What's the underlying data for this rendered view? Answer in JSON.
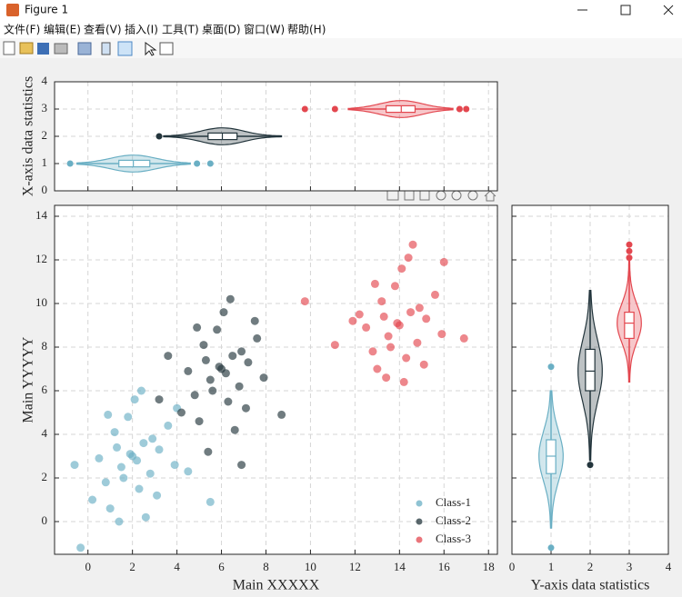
{
  "window": {
    "title": "Figure 1",
    "menu": [
      "文件(F)",
      "编辑(E)",
      "查看(V)",
      "插入(I)",
      "工具(T)",
      "桌面(D)",
      "窗口(W)",
      "帮助(H)"
    ]
  },
  "chart_data": [
    {
      "type": "scatter",
      "xlabel": "Main XXXXX",
      "ylabel": "Main YYYYY",
      "xlim": [
        -1.5,
        18.4
      ],
      "xticks": [
        0,
        2,
        4,
        6,
        8,
        10,
        12,
        14,
        16,
        18
      ],
      "ylim": [
        -1.5,
        14.5
      ],
      "yticks": [
        0,
        2,
        4,
        6,
        8,
        10,
        12,
        14
      ],
      "grid": true,
      "tick_labels": [
        "x",
        "y"
      ],
      "legend": "lower right",
      "series": [
        {
          "name": "Class-1",
          "color": "#6aafc4",
          "x": [
            2.0,
            1.5,
            2.5,
            1.2,
            2.8,
            0.8,
            3.2,
            1.8,
            2.3,
            0.5,
            3.6,
            1.0,
            2.1,
            1.6,
            2.9,
            0.2,
            3.9,
            1.3,
            2.6,
            -0.6,
            4.5,
            1.9,
            2.4,
            0.9,
            3.1,
            1.4,
            -0.33,
            5.5,
            2.2,
            4.0
          ],
          "y": [
            3.0,
            2.5,
            3.6,
            4.1,
            2.2,
            1.8,
            3.3,
            4.8,
            1.5,
            2.9,
            4.4,
            0.6,
            5.6,
            2.0,
            3.8,
            1.0,
            2.6,
            3.4,
            0.2,
            2.6,
            2.3,
            3.1,
            6.0,
            4.9,
            1.2,
            0.0,
            -1.2,
            0.9,
            2.8,
            5.2
          ]
        },
        {
          "name": "Class-2",
          "color": "#23353c",
          "x": [
            6.0,
            5.5,
            6.5,
            5.2,
            6.8,
            4.8,
            7.2,
            5.8,
            6.3,
            4.5,
            7.6,
            5.0,
            6.1,
            5.6,
            6.9,
            4.2,
            7.9,
            5.3,
            6.6,
            3.6,
            8.7,
            5.9,
            6.4,
            4.9,
            7.1,
            5.4,
            6.9,
            3.2,
            6.2,
            7.5
          ],
          "y": [
            7.0,
            6.5,
            7.6,
            8.1,
            6.2,
            5.8,
            7.3,
            8.8,
            5.5,
            6.9,
            8.4,
            4.6,
            9.6,
            6.0,
            7.8,
            5.0,
            6.6,
            7.4,
            4.2,
            7.6,
            4.9,
            7.1,
            10.2,
            8.9,
            5.2,
            3.2,
            2.6,
            5.6,
            6.8,
            9.2
          ]
        },
        {
          "name": "Class-3",
          "color": "#e3474f",
          "x": [
            14.0,
            13.5,
            14.5,
            13.2,
            14.8,
            12.8,
            15.2,
            13.8,
            14.3,
            12.5,
            15.6,
            13.0,
            14.1,
            13.6,
            14.9,
            12.2,
            15.9,
            13.3,
            14.6,
            11.9,
            16.9,
            13.9,
            14.4,
            12.9,
            15.1,
            13.4,
            9.75,
            11.1,
            16.0,
            14.2
          ],
          "y": [
            9.0,
            8.5,
            9.6,
            10.1,
            8.2,
            7.8,
            9.3,
            10.8,
            7.5,
            8.9,
            10.4,
            7.0,
            11.6,
            8.0,
            9.8,
            9.5,
            8.6,
            9.4,
            12.7,
            9.2,
            8.4,
            9.1,
            12.1,
            10.9,
            7.2,
            6.6,
            10.1,
            8.1,
            11.9,
            6.4
          ]
        }
      ]
    },
    {
      "type": "violin",
      "orientation": "horizontal",
      "ylabel": "X-axis data statistics",
      "xlim": [
        -1.5,
        18.4
      ],
      "xticks": [
        0,
        2,
        4,
        6,
        8,
        10,
        12,
        14,
        16,
        18
      ],
      "ylim": [
        0,
        4
      ],
      "yticks": [
        0,
        1,
        2,
        3,
        4
      ],
      "grid": true,
      "tick_labels": [
        "y"
      ],
      "series": [
        {
          "color": "#6aafc4",
          "position": 1,
          "q1": 1.39,
          "median": 2.04,
          "q3": 2.78,
          "whiskers": [
            -0.5,
            4.6
          ],
          "outliers": [
            -0.8,
            4.9,
            5.5
          ]
        },
        {
          "color": "#23353c",
          "position": 2,
          "q1": 5.4,
          "median": 6.04,
          "q3": 6.7,
          "whiskers": [
            3.4,
            8.7
          ],
          "outliers": [
            3.2
          ]
        },
        {
          "color": "#e3474f",
          "position": 3,
          "q1": 13.4,
          "median": 14.08,
          "q3": 14.7,
          "whiskers": [
            11.7,
            16.4
          ],
          "outliers": [
            9.75,
            11.1,
            16.7,
            17.0
          ]
        }
      ]
    },
    {
      "type": "violin",
      "orientation": "vertical",
      "xlabel": "Y-axis data statistics",
      "xlim": [
        0,
        4
      ],
      "xticks": [
        0,
        1,
        2,
        3,
        4
      ],
      "ylim": [
        -1.5,
        14.5
      ],
      "yticks": [
        0,
        2,
        4,
        6,
        8,
        10,
        12,
        14
      ],
      "grid": true,
      "tick_labels": [
        "x"
      ],
      "series": [
        {
          "color": "#6aafc4",
          "position": 1,
          "q1": 2.2,
          "median": 3.0,
          "q3": 3.75,
          "whiskers": [
            -0.3,
            6.0
          ],
          "outliers": [
            -1.2,
            7.1
          ]
        },
        {
          "color": "#23353c",
          "position": 2,
          "q1": 6.0,
          "median": 6.9,
          "q3": 7.9,
          "whiskers": [
            2.8,
            10.6
          ],
          "outliers": [
            2.6
          ]
        },
        {
          "color": "#e3474f",
          "position": 3,
          "q1": 8.4,
          "median": 9.1,
          "q3": 9.6,
          "whiskers": [
            6.4,
            12.0
          ],
          "outliers": [
            12.1,
            12.4,
            12.7
          ]
        }
      ]
    }
  ]
}
